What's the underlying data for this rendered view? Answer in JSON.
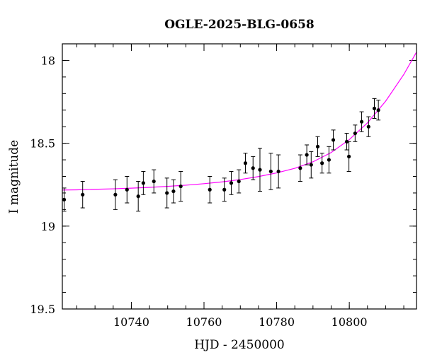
{
  "chart_data": {
    "type": "scatter",
    "title": "OGLE-2025-BLG-0658",
    "xlabel": "HJD - 2450000",
    "ylabel": "I magnitude",
    "xlim": [
      10721.0,
      10818.5
    ],
    "ylim": [
      19.5,
      17.9
    ],
    "y_inverted": true,
    "grid": false,
    "x_ticks": [
      10740,
      10760,
      10780,
      10800
    ],
    "x_tick_labels": [
      "10740",
      "10760",
      "10780",
      "10800"
    ],
    "y_ticks": [
      18,
      18.5,
      19,
      19.5
    ],
    "y_tick_labels": [
      "18",
      "18.5",
      "19",
      "19.5"
    ],
    "x_minor_step": 5,
    "y_minor_step": 0.1,
    "colors": {
      "points": "#000000",
      "model": "#ff00ff",
      "axes": "#000000"
    },
    "points": [
      {
        "x": 10721.5,
        "y": 18.84,
        "err": 0.07
      },
      {
        "x": 10726.6,
        "y": 18.81,
        "err": 0.08
      },
      {
        "x": 10735.6,
        "y": 18.81,
        "err": 0.09
      },
      {
        "x": 10738.8,
        "y": 18.78,
        "err": 0.08
      },
      {
        "x": 10741.9,
        "y": 18.82,
        "err": 0.09
      },
      {
        "x": 10743.3,
        "y": 18.74,
        "err": 0.07
      },
      {
        "x": 10746.2,
        "y": 18.73,
        "err": 0.07
      },
      {
        "x": 10749.8,
        "y": 18.8,
        "err": 0.09
      },
      {
        "x": 10751.6,
        "y": 18.79,
        "err": 0.07
      },
      {
        "x": 10753.6,
        "y": 18.76,
        "err": 0.09
      },
      {
        "x": 10761.6,
        "y": 18.78,
        "err": 0.08
      },
      {
        "x": 10765.6,
        "y": 18.78,
        "err": 0.07
      },
      {
        "x": 10767.5,
        "y": 18.74,
        "err": 0.07
      },
      {
        "x": 10769.6,
        "y": 18.73,
        "err": 0.07
      },
      {
        "x": 10771.4,
        "y": 18.62,
        "err": 0.06
      },
      {
        "x": 10773.5,
        "y": 18.65,
        "err": 0.07
      },
      {
        "x": 10775.4,
        "y": 18.66,
        "err": 0.13
      },
      {
        "x": 10778.4,
        "y": 18.67,
        "err": 0.11
      },
      {
        "x": 10780.5,
        "y": 18.67,
        "err": 0.1
      },
      {
        "x": 10786.5,
        "y": 18.65,
        "err": 0.08
      },
      {
        "x": 10788.3,
        "y": 18.57,
        "err": 0.06
      },
      {
        "x": 10789.5,
        "y": 18.63,
        "err": 0.08
      },
      {
        "x": 10791.3,
        "y": 18.52,
        "err": 0.06
      },
      {
        "x": 10792.5,
        "y": 18.62,
        "err": 0.06
      },
      {
        "x": 10794.4,
        "y": 18.6,
        "err": 0.08
      },
      {
        "x": 10795.6,
        "y": 18.48,
        "err": 0.06
      },
      {
        "x": 10799.3,
        "y": 18.49,
        "err": 0.05
      },
      {
        "x": 10799.9,
        "y": 18.58,
        "err": 0.09
      },
      {
        "x": 10801.6,
        "y": 18.44,
        "err": 0.05
      },
      {
        "x": 10803.4,
        "y": 18.37,
        "err": 0.06
      },
      {
        "x": 10805.3,
        "y": 18.4,
        "err": 0.06
      },
      {
        "x": 10806.9,
        "y": 18.29,
        "err": 0.06
      },
      {
        "x": 10808.0,
        "y": 18.3,
        "err": 0.06
      }
    ],
    "model": {
      "x": [
        10721.0,
        10725,
        10730,
        10735,
        10740,
        10745,
        10750,
        10755,
        10760,
        10765,
        10770,
        10775,
        10780,
        10785,
        10790,
        10795,
        10800,
        10805,
        10810,
        10815,
        10818.5
      ],
      "y": [
        18.782,
        18.781,
        18.778,
        18.775,
        18.771,
        18.766,
        18.76,
        18.753,
        18.744,
        18.733,
        18.719,
        18.701,
        18.679,
        18.651,
        18.612,
        18.556,
        18.478,
        18.377,
        18.246,
        18.085,
        17.95
      ]
    }
  }
}
